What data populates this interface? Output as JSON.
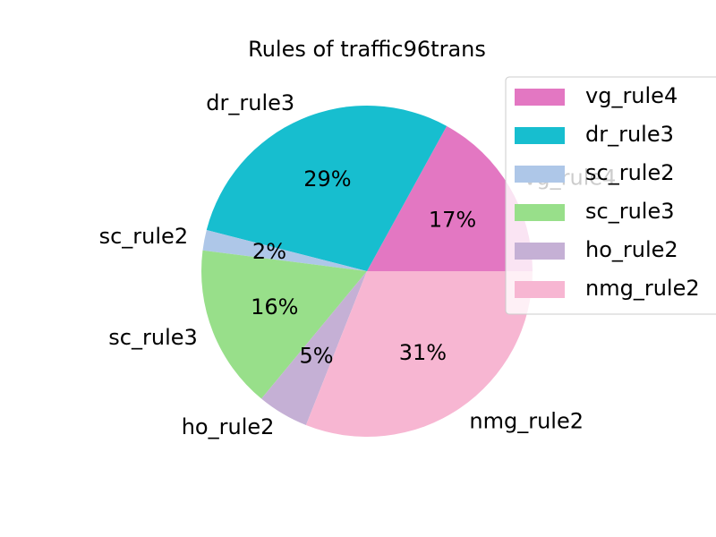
{
  "chart_data": {
    "type": "pie",
    "title": "Rules of traffic96trans",
    "slices": [
      {
        "label": "vg_rule4",
        "value": 17,
        "pct_label": "17%",
        "color": "#e377c2"
      },
      {
        "label": "dr_rule3",
        "value": 29,
        "pct_label": "29%",
        "color": "#17becf"
      },
      {
        "label": "sc_rule2",
        "value": 2,
        "pct_label": "2%",
        "color": "#aec7e8"
      },
      {
        "label": "sc_rule3",
        "value": 16,
        "pct_label": "16%",
        "color": "#98df8a"
      },
      {
        "label": "ho_rule2",
        "value": 5,
        "pct_label": "5%",
        "color": "#c5b0d5"
      },
      {
        "label": "nmg_rule2",
        "value": 31,
        "pct_label": "31%",
        "color": "#f7b6d2"
      }
    ],
    "legend": {
      "placement": "top-right",
      "entries": [
        "vg_rule4",
        "dr_rule3",
        "sc_rule2",
        "sc_rule3",
        "ho_rule2",
        "nmg_rule2"
      ]
    }
  }
}
